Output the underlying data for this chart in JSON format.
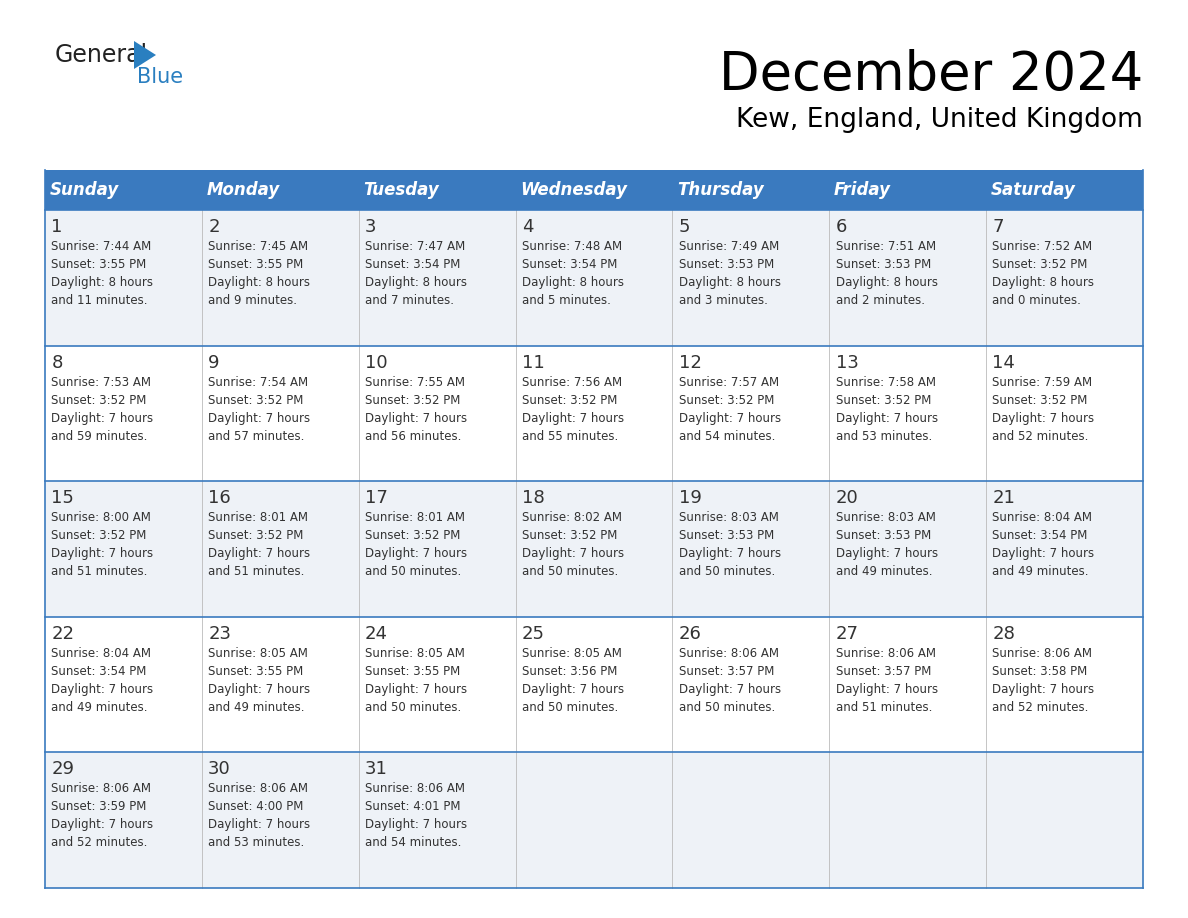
{
  "title": "December 2024",
  "subtitle": "Kew, England, United Kingdom",
  "header_bg": "#3a7abf",
  "header_text": "#ffffff",
  "day_names": [
    "Sunday",
    "Monday",
    "Tuesday",
    "Wednesday",
    "Thursday",
    "Friday",
    "Saturday"
  ],
  "cell_bg_odd": "#eef2f7",
  "cell_bg_even": "#ffffff",
  "border_color": "#3a7abf",
  "text_color": "#333333",
  "logo_black": "#222222",
  "logo_blue": "#2a7fc0",
  "days": [
    {
      "day": 1,
      "col": 0,
      "row": 0,
      "sunrise": "7:44 AM",
      "sunset": "3:55 PM",
      "daylight": "8 hours and 11 minutes."
    },
    {
      "day": 2,
      "col": 1,
      "row": 0,
      "sunrise": "7:45 AM",
      "sunset": "3:55 PM",
      "daylight": "8 hours and 9 minutes."
    },
    {
      "day": 3,
      "col": 2,
      "row": 0,
      "sunrise": "7:47 AM",
      "sunset": "3:54 PM",
      "daylight": "8 hours and 7 minutes."
    },
    {
      "day": 4,
      "col": 3,
      "row": 0,
      "sunrise": "7:48 AM",
      "sunset": "3:54 PM",
      "daylight": "8 hours and 5 minutes."
    },
    {
      "day": 5,
      "col": 4,
      "row": 0,
      "sunrise": "7:49 AM",
      "sunset": "3:53 PM",
      "daylight": "8 hours and 3 minutes."
    },
    {
      "day": 6,
      "col": 5,
      "row": 0,
      "sunrise": "7:51 AM",
      "sunset": "3:53 PM",
      "daylight": "8 hours and 2 minutes."
    },
    {
      "day": 7,
      "col": 6,
      "row": 0,
      "sunrise": "7:52 AM",
      "sunset": "3:52 PM",
      "daylight": "8 hours and 0 minutes."
    },
    {
      "day": 8,
      "col": 0,
      "row": 1,
      "sunrise": "7:53 AM",
      "sunset": "3:52 PM",
      "daylight": "7 hours and 59 minutes."
    },
    {
      "day": 9,
      "col": 1,
      "row": 1,
      "sunrise": "7:54 AM",
      "sunset": "3:52 PM",
      "daylight": "7 hours and 57 minutes."
    },
    {
      "day": 10,
      "col": 2,
      "row": 1,
      "sunrise": "7:55 AM",
      "sunset": "3:52 PM",
      "daylight": "7 hours and 56 minutes."
    },
    {
      "day": 11,
      "col": 3,
      "row": 1,
      "sunrise": "7:56 AM",
      "sunset": "3:52 PM",
      "daylight": "7 hours and 55 minutes."
    },
    {
      "day": 12,
      "col": 4,
      "row": 1,
      "sunrise": "7:57 AM",
      "sunset": "3:52 PM",
      "daylight": "7 hours and 54 minutes."
    },
    {
      "day": 13,
      "col": 5,
      "row": 1,
      "sunrise": "7:58 AM",
      "sunset": "3:52 PM",
      "daylight": "7 hours and 53 minutes."
    },
    {
      "day": 14,
      "col": 6,
      "row": 1,
      "sunrise": "7:59 AM",
      "sunset": "3:52 PM",
      "daylight": "7 hours and 52 minutes."
    },
    {
      "day": 15,
      "col": 0,
      "row": 2,
      "sunrise": "8:00 AM",
      "sunset": "3:52 PM",
      "daylight": "7 hours and 51 minutes."
    },
    {
      "day": 16,
      "col": 1,
      "row": 2,
      "sunrise": "8:01 AM",
      "sunset": "3:52 PM",
      "daylight": "7 hours and 51 minutes."
    },
    {
      "day": 17,
      "col": 2,
      "row": 2,
      "sunrise": "8:01 AM",
      "sunset": "3:52 PM",
      "daylight": "7 hours and 50 minutes."
    },
    {
      "day": 18,
      "col": 3,
      "row": 2,
      "sunrise": "8:02 AM",
      "sunset": "3:52 PM",
      "daylight": "7 hours and 50 minutes."
    },
    {
      "day": 19,
      "col": 4,
      "row": 2,
      "sunrise": "8:03 AM",
      "sunset": "3:53 PM",
      "daylight": "7 hours and 50 minutes."
    },
    {
      "day": 20,
      "col": 5,
      "row": 2,
      "sunrise": "8:03 AM",
      "sunset": "3:53 PM",
      "daylight": "7 hours and 49 minutes."
    },
    {
      "day": 21,
      "col": 6,
      "row": 2,
      "sunrise": "8:04 AM",
      "sunset": "3:54 PM",
      "daylight": "7 hours and 49 minutes."
    },
    {
      "day": 22,
      "col": 0,
      "row": 3,
      "sunrise": "8:04 AM",
      "sunset": "3:54 PM",
      "daylight": "7 hours and 49 minutes."
    },
    {
      "day": 23,
      "col": 1,
      "row": 3,
      "sunrise": "8:05 AM",
      "sunset": "3:55 PM",
      "daylight": "7 hours and 49 minutes."
    },
    {
      "day": 24,
      "col": 2,
      "row": 3,
      "sunrise": "8:05 AM",
      "sunset": "3:55 PM",
      "daylight": "7 hours and 50 minutes."
    },
    {
      "day": 25,
      "col": 3,
      "row": 3,
      "sunrise": "8:05 AM",
      "sunset": "3:56 PM",
      "daylight": "7 hours and 50 minutes."
    },
    {
      "day": 26,
      "col": 4,
      "row": 3,
      "sunrise": "8:06 AM",
      "sunset": "3:57 PM",
      "daylight": "7 hours and 50 minutes."
    },
    {
      "day": 27,
      "col": 5,
      "row": 3,
      "sunrise": "8:06 AM",
      "sunset": "3:57 PM",
      "daylight": "7 hours and 51 minutes."
    },
    {
      "day": 28,
      "col": 6,
      "row": 3,
      "sunrise": "8:06 AM",
      "sunset": "3:58 PM",
      "daylight": "7 hours and 52 minutes."
    },
    {
      "day": 29,
      "col": 0,
      "row": 4,
      "sunrise": "8:06 AM",
      "sunset": "3:59 PM",
      "daylight": "7 hours and 52 minutes."
    },
    {
      "day": 30,
      "col": 1,
      "row": 4,
      "sunrise": "8:06 AM",
      "sunset": "4:00 PM",
      "daylight": "7 hours and 53 minutes."
    },
    {
      "day": 31,
      "col": 2,
      "row": 4,
      "sunrise": "8:06 AM",
      "sunset": "4:01 PM",
      "daylight": "7 hours and 54 minutes."
    }
  ]
}
